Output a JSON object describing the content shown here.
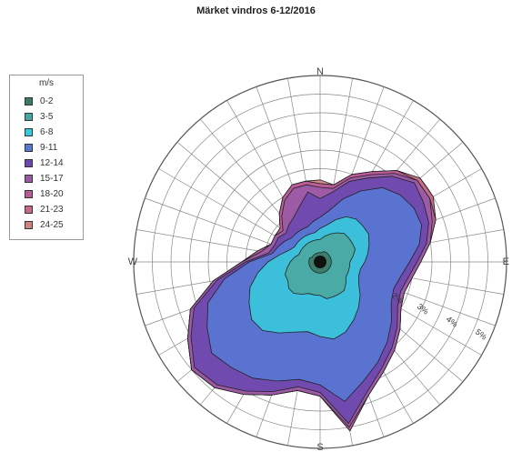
{
  "chart_data": {
    "type": "polar-area",
    "title": "Märket vindros 6-12/2016",
    "legend": {
      "unit": "m/s",
      "placement": "left",
      "items": [
        {
          "label": "0-2",
          "color": "#3c7a68"
        },
        {
          "label": "3-5",
          "color": "#4aa7a0"
        },
        {
          "label": "6-8",
          "color": "#38c8dc"
        },
        {
          "label": "9-11",
          "color": "#5878d4"
        },
        {
          "label": "12-14",
          "color": "#6c48b0"
        },
        {
          "label": "15-17",
          "color": "#9a5aa6"
        },
        {
          "label": "18-20",
          "color": "#b85a98"
        },
        {
          "label": "21-23",
          "color": "#c46a88"
        },
        {
          "label": "24-25",
          "color": "#d08282"
        }
      ]
    },
    "directions": [
      "N",
      "E",
      "S",
      "W"
    ],
    "radial_labels": [
      "2%",
      "3%",
      "4%",
      "5%"
    ],
    "radial_max": 5,
    "sector_count": 36,
    "series": [
      {
        "label": "0-2",
        "values": [
          0.25,
          0.25,
          0.3,
          0.3,
          0.3,
          0.3,
          0.3,
          0.3,
          0.3,
          0.3,
          0.3,
          0.3,
          0.3,
          0.3,
          0.3,
          0.3,
          0.3,
          0.3,
          0.3,
          0.3,
          0.3,
          0.3,
          0.3,
          0.3,
          0.3,
          0.3,
          0.3,
          0.3,
          0.3,
          0.3,
          0.25,
          0.25,
          0.25,
          0.25,
          0.25,
          0.25
        ]
      },
      {
        "label": "3-5",
        "values": [
          0.6,
          0.7,
          0.8,
          0.9,
          1.0,
          1.0,
          1.0,
          1.0,
          0.9,
          0.8,
          0.8,
          0.8,
          0.8,
          0.9,
          1.0,
          1.0,
          1.0,
          1.0,
          0.9,
          0.9,
          0.9,
          1.0,
          1.1,
          1.1,
          1.0,
          1.0,
          0.9,
          0.8,
          0.7,
          0.6,
          0.6,
          0.6,
          0.6,
          0.6,
          0.6,
          0.6
        ]
      },
      {
        "label": "6-8",
        "values": [
          0.9,
          1.0,
          1.2,
          1.4,
          1.5,
          1.5,
          1.5,
          1.4,
          1.3,
          1.2,
          1.1,
          1.1,
          1.2,
          1.4,
          1.6,
          1.8,
          2.0,
          2.1,
          2.0,
          1.9,
          2.0,
          2.2,
          2.4,
          2.4,
          2.2,
          2.0,
          1.7,
          1.4,
          1.1,
          0.9,
          0.8,
          0.8,
          0.8,
          0.8,
          0.8,
          0.8
        ]
      },
      {
        "label": "9-11",
        "values": [
          1.2,
          1.4,
          1.8,
          2.2,
          2.6,
          2.8,
          2.9,
          2.9,
          2.7,
          2.4,
          2.2,
          2.1,
          2.2,
          2.5,
          2.8,
          3.1,
          3.4,
          3.8,
          3.3,
          3.2,
          3.4,
          3.6,
          3.7,
          3.8,
          3.5,
          3.2,
          2.6,
          1.9,
          1.3,
          1.2,
          1.1,
          1.0,
          1.0,
          1.0,
          1.0,
          1.1
        ]
      },
      {
        "label": "12-14",
        "values": [
          1.7,
          1.9,
          2.3,
          2.6,
          3.0,
          3.3,
          3.2,
          3.1,
          2.9,
          2.6,
          2.4,
          2.3,
          2.4,
          2.7,
          3.0,
          3.3,
          3.7,
          4.4,
          3.5,
          3.4,
          3.7,
          4.0,
          4.3,
          4.4,
          4.0,
          3.6,
          2.8,
          2.0,
          1.4,
          1.3,
          1.3,
          1.2,
          1.3,
          1.4,
          1.6,
          1.9
        ]
      },
      {
        "label": "15-17",
        "values": [
          2.0,
          2.0,
          2.4,
          2.7,
          3.1,
          3.4,
          3.4,
          3.2,
          3.0,
          2.7,
          2.5,
          2.4,
          2.5,
          2.8,
          3.1,
          3.4,
          3.8,
          4.5,
          3.6,
          3.5,
          3.8,
          4.1,
          4.4,
          4.5,
          4.1,
          3.7,
          2.9,
          2.1,
          1.6,
          1.4,
          1.4,
          1.3,
          1.6,
          1.9,
          2.1,
          2.1
        ]
      },
      {
        "label": "18-20",
        "values": [
          2.1,
          2.1,
          2.5,
          2.8,
          3.2,
          3.4,
          3.4,
          3.3,
          3.0,
          2.7,
          2.5,
          2.4,
          2.5,
          2.8,
          3.1,
          3.4,
          3.8,
          4.6,
          3.6,
          3.5,
          3.8,
          4.1,
          4.4,
          4.5,
          4.1,
          3.7,
          2.9,
          2.1,
          1.7,
          1.4,
          1.4,
          1.4,
          1.7,
          2.0,
          2.2,
          2.2
        ]
      },
      {
        "label": "21-23",
        "values": [
          2.1,
          2.1,
          2.5,
          2.8,
          3.2,
          3.5,
          3.5,
          3.3,
          3.0,
          2.7,
          2.5,
          2.4,
          2.5,
          2.8,
          3.1,
          3.4,
          3.8,
          4.6,
          3.6,
          3.5,
          3.8,
          4.1,
          4.4,
          4.5,
          4.1,
          3.7,
          2.9,
          2.1,
          1.7,
          1.4,
          1.4,
          1.4,
          1.7,
          2.0,
          2.2,
          2.2
        ]
      },
      {
        "label": "24-25",
        "values": [
          2.2,
          2.1,
          2.5,
          2.8,
          3.2,
          3.5,
          3.5,
          3.3,
          3.0,
          2.7,
          2.5,
          2.4,
          2.5,
          2.8,
          3.1,
          3.4,
          3.8,
          4.6,
          3.6,
          3.5,
          3.8,
          4.1,
          4.4,
          4.5,
          4.1,
          3.7,
          2.9,
          2.1,
          1.7,
          1.4,
          1.4,
          1.4,
          1.7,
          2.0,
          2.2,
          2.2
        ]
      }
    ]
  }
}
